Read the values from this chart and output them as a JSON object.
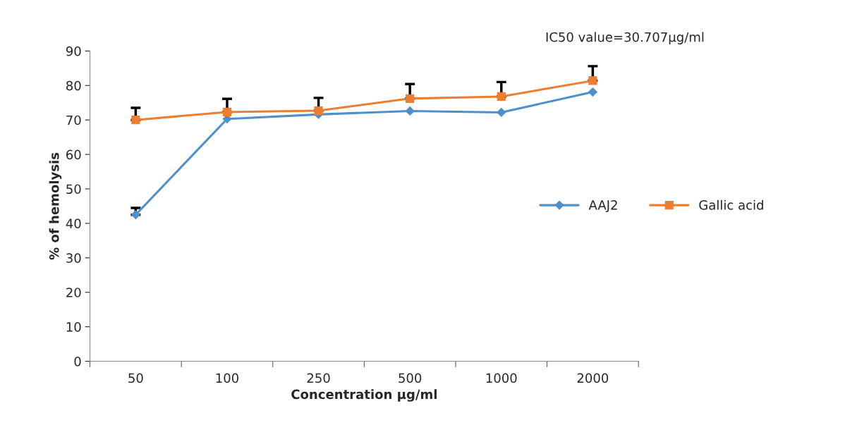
{
  "chart_data": {
    "type": "line",
    "xlabel": "Concentration µg/ml",
    "ylabel": "% of hemolysis",
    "categories": [
      "50",
      "100",
      "250",
      "500",
      "1000",
      "2000"
    ],
    "series": [
      {
        "name": "AAJ2",
        "color": "#4f8fcc",
        "marker": "diamond",
        "values": [
          42.5,
          70.3,
          71.6,
          72.6,
          72.2,
          78.1
        ],
        "errors": [
          [
            42.5,
            44.5
          ],
          null,
          null,
          null,
          null,
          null
        ]
      },
      {
        "name": "Gallic acid",
        "color": "#ed7d31",
        "marker": "square",
        "values": [
          70.0,
          72.3,
          72.7,
          76.2,
          76.8,
          81.4
        ],
        "errors": [
          [
            70.0,
            73.5
          ],
          [
            72.3,
            76.1
          ],
          [
            72.7,
            76.4
          ],
          [
            76.2,
            80.4
          ],
          [
            76.8,
            81.0
          ],
          [
            81.4,
            85.6
          ]
        ]
      }
    ],
    "ylim": [
      0,
      90
    ],
    "yticks": [
      0,
      10,
      20,
      30,
      40,
      50,
      60,
      70,
      80,
      90
    ],
    "grid": false,
    "legend": "right",
    "annotations": [
      "IC50 value=30.707µg/ml"
    ]
  }
}
